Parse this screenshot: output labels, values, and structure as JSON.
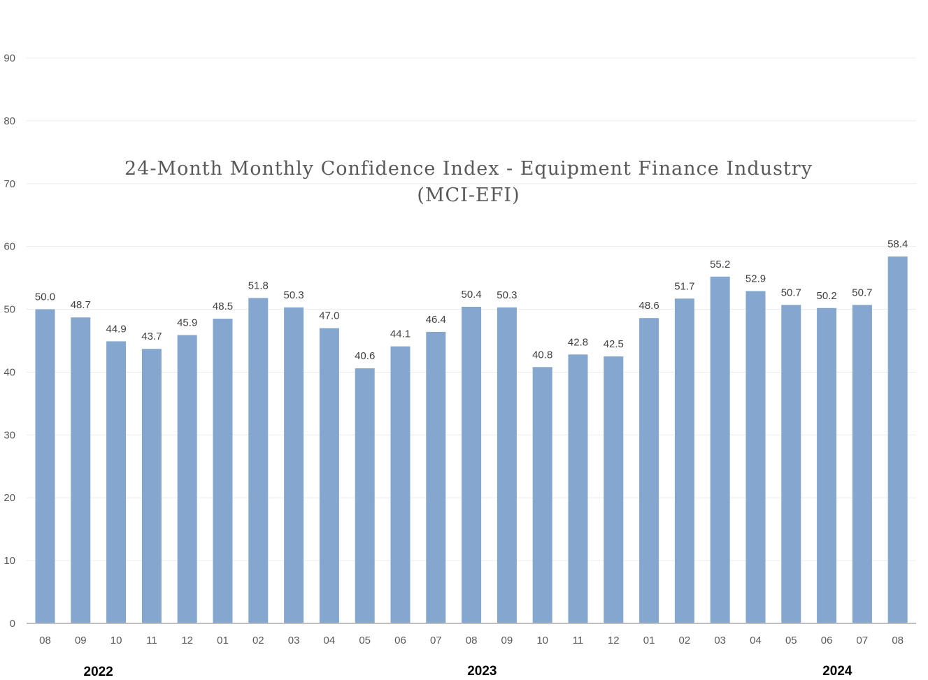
{
  "chart_data": {
    "type": "bar",
    "title": "24-Month Monthly Confidence Index - Equipment Finance Industry",
    "subtitle": "(MCI-EFI)",
    "categories": [
      "08",
      "09",
      "10",
      "11",
      "12",
      "01",
      "02",
      "03",
      "04",
      "05",
      "06",
      "07",
      "08",
      "09",
      "10",
      "11",
      "12",
      "01",
      "02",
      "03",
      "04",
      "05",
      "06",
      "07",
      "08"
    ],
    "values": [
      50.0,
      48.7,
      44.9,
      43.7,
      45.9,
      48.5,
      51.8,
      50.3,
      47.0,
      40.6,
      44.1,
      46.4,
      50.4,
      50.3,
      40.8,
      42.8,
      42.5,
      48.6,
      51.7,
      55.2,
      52.9,
      50.7,
      50.2,
      50.7,
      58.4
    ],
    "value_labels": [
      "50.0",
      "48.7",
      "44.9",
      "43.7",
      "45.9",
      "48.5",
      "51.8",
      "50.3",
      "47.0",
      "40.6",
      "44.1",
      "46.4",
      "50.4",
      "50.3",
      "40.8",
      "42.8",
      "42.5",
      "48.6",
      "51.7",
      "55.2",
      "52.9",
      "50.7",
      "50.2",
      "50.7",
      "58.4"
    ],
    "years": [
      {
        "label": "2022",
        "category_index": 1.5
      },
      {
        "label": "2023",
        "category_index": 12.3
      },
      {
        "label": "2024",
        "category_index": 22.3
      }
    ],
    "ylim": [
      0,
      90
    ],
    "yticks": [
      "0",
      "10",
      "20",
      "30",
      "40",
      "50",
      "60",
      "70",
      "80",
      "90"
    ],
    "grid": true,
    "legend": "none",
    "xlabel": "",
    "ylabel": "",
    "colors": {
      "bar": "#85a6ce",
      "grid": "#ececec",
      "axis": "#bfbfbf"
    }
  }
}
